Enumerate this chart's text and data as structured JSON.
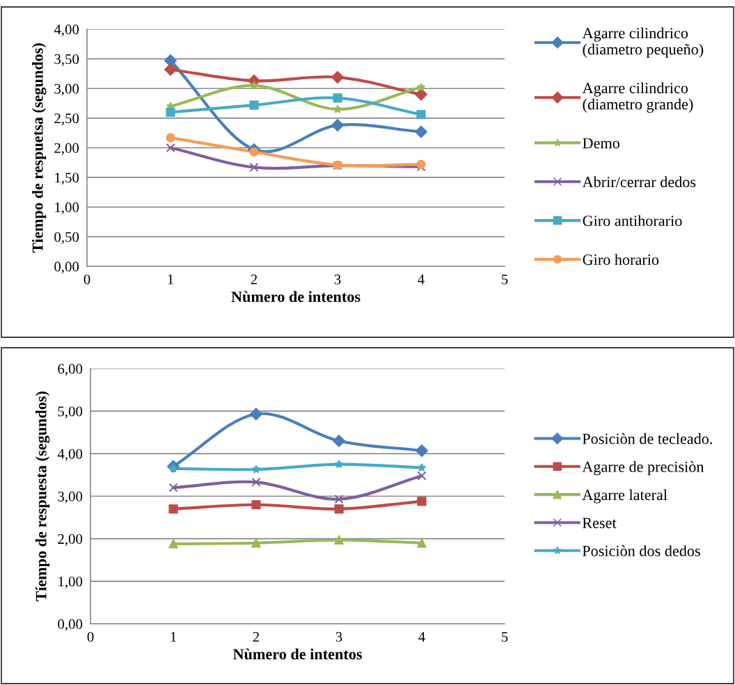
{
  "chart_data": [
    {
      "type": "line",
      "xlabel": "Nùmero de intentos",
      "ylabel": "Tiempo de respuetsa (segundos)",
      "x": [
        1,
        2,
        3,
        4
      ],
      "xlim": [
        0,
        5
      ],
      "xticks": [
        0,
        1,
        2,
        3,
        4,
        5
      ],
      "ylim": [
        0,
        4
      ],
      "yticks": [
        {
          "value": 0,
          "label": "0,00"
        },
        {
          "value": 0.5,
          "label": "0,50"
        },
        {
          "value": 1,
          "label": "1,00"
        },
        {
          "value": 1.5,
          "label": "1,50"
        },
        {
          "value": 2,
          "label": "2,00"
        },
        {
          "value": 2.5,
          "label": "2,50"
        },
        {
          "value": 3,
          "label": "3,00"
        },
        {
          "value": 3.5,
          "label": "3,50"
        },
        {
          "value": 4,
          "label": "4,00"
        }
      ],
      "grid": "y",
      "legend": "right",
      "series": [
        {
          "name": "Agarre cilindrico\n(diametro pequeño)",
          "color": "#4a7ebb",
          "marker": "diamond",
          "values": [
            3.47,
            1.97,
            2.38,
            2.27
          ]
        },
        {
          "name": "Agarre cilindrico\n(diametro grande)",
          "color": "#be4b48",
          "marker": "diamond",
          "values": [
            3.32,
            3.13,
            3.19,
            2.9
          ]
        },
        {
          "name": "Demo",
          "color": "#98b954",
          "marker": "star",
          "values": [
            2.7,
            3.05,
            2.65,
            3.02
          ]
        },
        {
          "name": "Abrir/cerrar dedos",
          "color": "#7d60a0",
          "marker": "cross",
          "values": [
            2.0,
            1.67,
            1.7,
            1.68
          ]
        },
        {
          "name": "Giro antihorario",
          "color": "#46aac5",
          "marker": "square",
          "values": [
            2.6,
            2.72,
            2.84,
            2.56
          ]
        },
        {
          "name": "Giro horario",
          "color": "#f59d56",
          "marker": "circle",
          "values": [
            2.17,
            1.93,
            1.71,
            1.72
          ]
        }
      ]
    },
    {
      "type": "line",
      "xlabel": "Nùmero de intentos",
      "ylabel": "Tíempo de respuesta (segundos)",
      "x": [
        1,
        2,
        3,
        4
      ],
      "xlim": [
        0,
        5
      ],
      "xticks": [
        0,
        1,
        2,
        3,
        4,
        5
      ],
      "ylim": [
        0,
        6
      ],
      "yticks": [
        {
          "value": 0,
          "label": "0,00"
        },
        {
          "value": 1,
          "label": "1,00"
        },
        {
          "value": 2,
          "label": "2,00"
        },
        {
          "value": 3,
          "label": "3,00"
        },
        {
          "value": 4,
          "label": "4,00"
        },
        {
          "value": 5,
          "label": "5,00"
        },
        {
          "value": 6,
          "label": "6,00"
        }
      ],
      "grid": "y",
      "legend": "right",
      "series": [
        {
          "name": "Posiciòn de tecleado.",
          "color": "#4a7ebb",
          "marker": "diamond",
          "values": [
            3.7,
            4.93,
            4.3,
            4.07
          ]
        },
        {
          "name": "Agarre de precisiòn",
          "color": "#be4b48",
          "marker": "square",
          "values": [
            2.7,
            2.8,
            2.7,
            2.88
          ]
        },
        {
          "name": "Agarre lateral",
          "color": "#98b954",
          "marker": "triangle",
          "values": [
            1.88,
            1.9,
            1.97,
            1.9
          ]
        },
        {
          "name": "Reset",
          "color": "#7d60a0",
          "marker": "cross",
          "values": [
            3.2,
            3.33,
            2.93,
            3.48
          ]
        },
        {
          "name": "Posiciòn dos dedos",
          "color": "#46aac5",
          "marker": "star",
          "values": [
            3.65,
            3.63,
            3.75,
            3.67
          ]
        }
      ]
    }
  ]
}
